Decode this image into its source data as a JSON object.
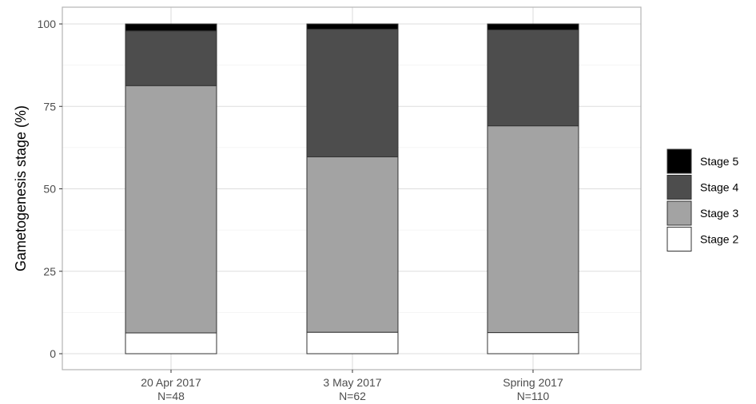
{
  "chart_data": {
    "type": "bar",
    "stacked": true,
    "percent": true,
    "title": "",
    "xlabel": "",
    "ylabel": "Gametogenesis stage (%)",
    "ylim": [
      0,
      100
    ],
    "yticks": [
      "0",
      "25",
      "50",
      "75",
      "100"
    ],
    "grid": true,
    "legend_position": "right",
    "categories": [
      {
        "line1": "20 Apr 2017",
        "line2": "N=48"
      },
      {
        "line1": "3 May 2017",
        "line2": "N=62"
      },
      {
        "line1": "Spring 2017",
        "line2": "N=110"
      }
    ],
    "series": [
      {
        "name": "Stage 2",
        "color": "#ffffff",
        "values": [
          6.3,
          6.5,
          6.4
        ]
      },
      {
        "name": "Stage 3",
        "color": "#a3a3a3",
        "values": [
          75.0,
          53.2,
          62.7
        ]
      },
      {
        "name": "Stage 4",
        "color": "#4d4d4d",
        "values": [
          16.6,
          38.7,
          29.1
        ]
      },
      {
        "name": "Stage 5",
        "color": "#000000",
        "values": [
          2.1,
          1.6,
          1.8
        ]
      }
    ],
    "legend_order": [
      "Stage 5",
      "Stage 4",
      "Stage 3",
      "Stage 2"
    ]
  }
}
